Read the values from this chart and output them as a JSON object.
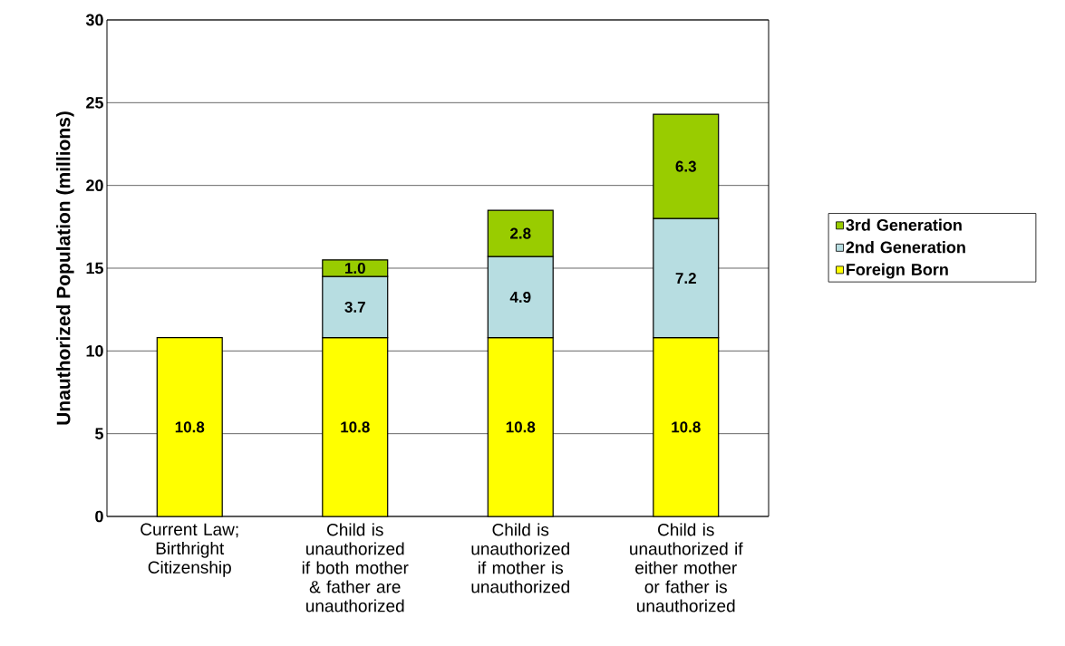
{
  "chart_data": {
    "type": "bar",
    "stacked": true,
    "ylabel": "Unauthorized Population (millions)",
    "categories": [
      "Current Law; Birthright Citizenship",
      "Child is unauthorized if both mother & father are unauthorized",
      "Child is unauthorized if mother is unauthorized",
      "Child is unauthorized if either mother or father is unauthorized"
    ],
    "series": [
      {
        "name": "Foreign Born",
        "color": "#ffff00",
        "values": [
          10.8,
          10.8,
          10.8,
          10.8
        ],
        "value_labels": [
          "10.8",
          "10.8",
          "10.8",
          "10.8"
        ]
      },
      {
        "name": "2nd Generation",
        "color": "#b7dde1",
        "values": [
          null,
          3.7,
          4.9,
          7.2
        ],
        "value_labels": [
          null,
          "3.7",
          "4.9",
          "7.2"
        ]
      },
      {
        "name": "3rd Generation",
        "color": "#99cc00",
        "values": [
          null,
          1.0,
          2.8,
          6.3
        ],
        "value_labels": [
          null,
          "1.0",
          "2.8",
          "6.3"
        ]
      }
    ],
    "ylim": [
      0,
      30
    ],
    "yticks": [
      0,
      5,
      10,
      15,
      20,
      25,
      30
    ],
    "grid": "y",
    "legend": "right"
  }
}
